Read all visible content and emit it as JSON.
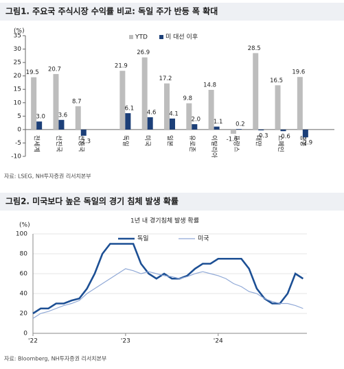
{
  "chart_data": [
    {
      "type": "bar",
      "title": "그림1. 주요국 주식시장 수익률 비교: 독일 주가 반등 폭 확대",
      "y_label": "(%)",
      "categories": [
        "전세계",
        "선진국",
        "신흥국",
        null,
        "독일",
        "미국",
        "일본",
        "유로존",
        "이탈리아",
        "프랑스",
        "대만",
        "스페인",
        "홍콩"
      ],
      "series": [
        {
          "name": "YTD",
          "color": "#bdbdbd",
          "values": [
            19.5,
            20.7,
            8.7,
            null,
            21.9,
            26.9,
            17.2,
            9.8,
            14.8,
            -1.6,
            28.5,
            16.5,
            19.6
          ],
          "value_labels": [
            "19.5",
            "20.7",
            "8.7",
            null,
            "21.9",
            "26.9",
            "17.2",
            "9.8",
            "14.8",
            "-1.6",
            "28.5",
            "16.5",
            "19.6"
          ]
        },
        {
          "name": "미 대선 이후",
          "color": "#1c3f78",
          "values": [
            3.0,
            3.6,
            -2.3,
            null,
            6.1,
            4.6,
            4.1,
            2.0,
            1.1,
            0.2,
            -0.3,
            -0.6,
            -2.9
          ],
          "value_labels": [
            "3.0",
            "3.6",
            "-2.3",
            null,
            "6.1",
            "4.6",
            "4.1",
            "2.0",
            "1.1",
            "0.2",
            "-0.3",
            "-0.6",
            "-2.9"
          ]
        }
      ],
      "ylim": [
        -10,
        35
      ],
      "yticks": [
        -10,
        -5,
        0,
        5,
        10,
        15,
        20,
        25,
        30,
        35
      ],
      "grid": false,
      "source": "자료: LSEG, NH투자증권 리서치본부"
    },
    {
      "type": "line",
      "title": "그림2. 미국보다 높은 독일의 경기 침체 발생 확률",
      "subtitle": "1년 내 경기침체 발생 확률",
      "y_label": "(%)",
      "x": [
        0,
        1,
        2,
        3,
        4,
        5,
        6,
        7,
        8,
        9,
        10,
        11,
        12,
        13,
        14,
        15,
        16,
        17,
        18,
        19,
        20,
        21,
        22,
        23,
        24,
        25,
        26,
        27,
        28,
        29,
        30,
        31,
        32,
        33,
        34,
        35
      ],
      "series": [
        {
          "name": "독일",
          "color": "#1c4f94",
          "values": [
            20,
            25,
            25,
            30,
            30,
            33,
            35,
            45,
            60,
            80,
            90,
            90,
            90,
            90,
            70,
            60,
            55,
            60,
            55,
            55,
            58,
            65,
            70,
            70,
            75,
            75,
            75,
            75,
            65,
            45,
            35,
            30,
            30,
            40,
            60,
            55
          ]
        },
        {
          "name": "미국",
          "color": "#8fa8d6",
          "values": [
            15,
            20,
            22,
            25,
            28,
            30,
            33,
            40,
            45,
            50,
            55,
            60,
            65,
            63,
            60,
            62,
            60,
            58,
            57,
            55,
            57,
            60,
            62,
            60,
            58,
            55,
            50,
            47,
            42,
            40,
            35,
            32,
            30,
            30,
            28,
            25
          ]
        }
      ],
      "xlim": [
        0,
        35.5
      ],
      "xticks": [
        {
          "value": 0,
          "label": "'22"
        },
        {
          "value": 12,
          "label": "'23"
        },
        {
          "value": 24,
          "label": "'24"
        }
      ],
      "ylim": [
        0,
        100
      ],
      "yticks": [
        0,
        20,
        40,
        60,
        80,
        100
      ],
      "grid": true,
      "source": "자료: Bloomberg, NH투자증권 리서치본부"
    }
  ]
}
